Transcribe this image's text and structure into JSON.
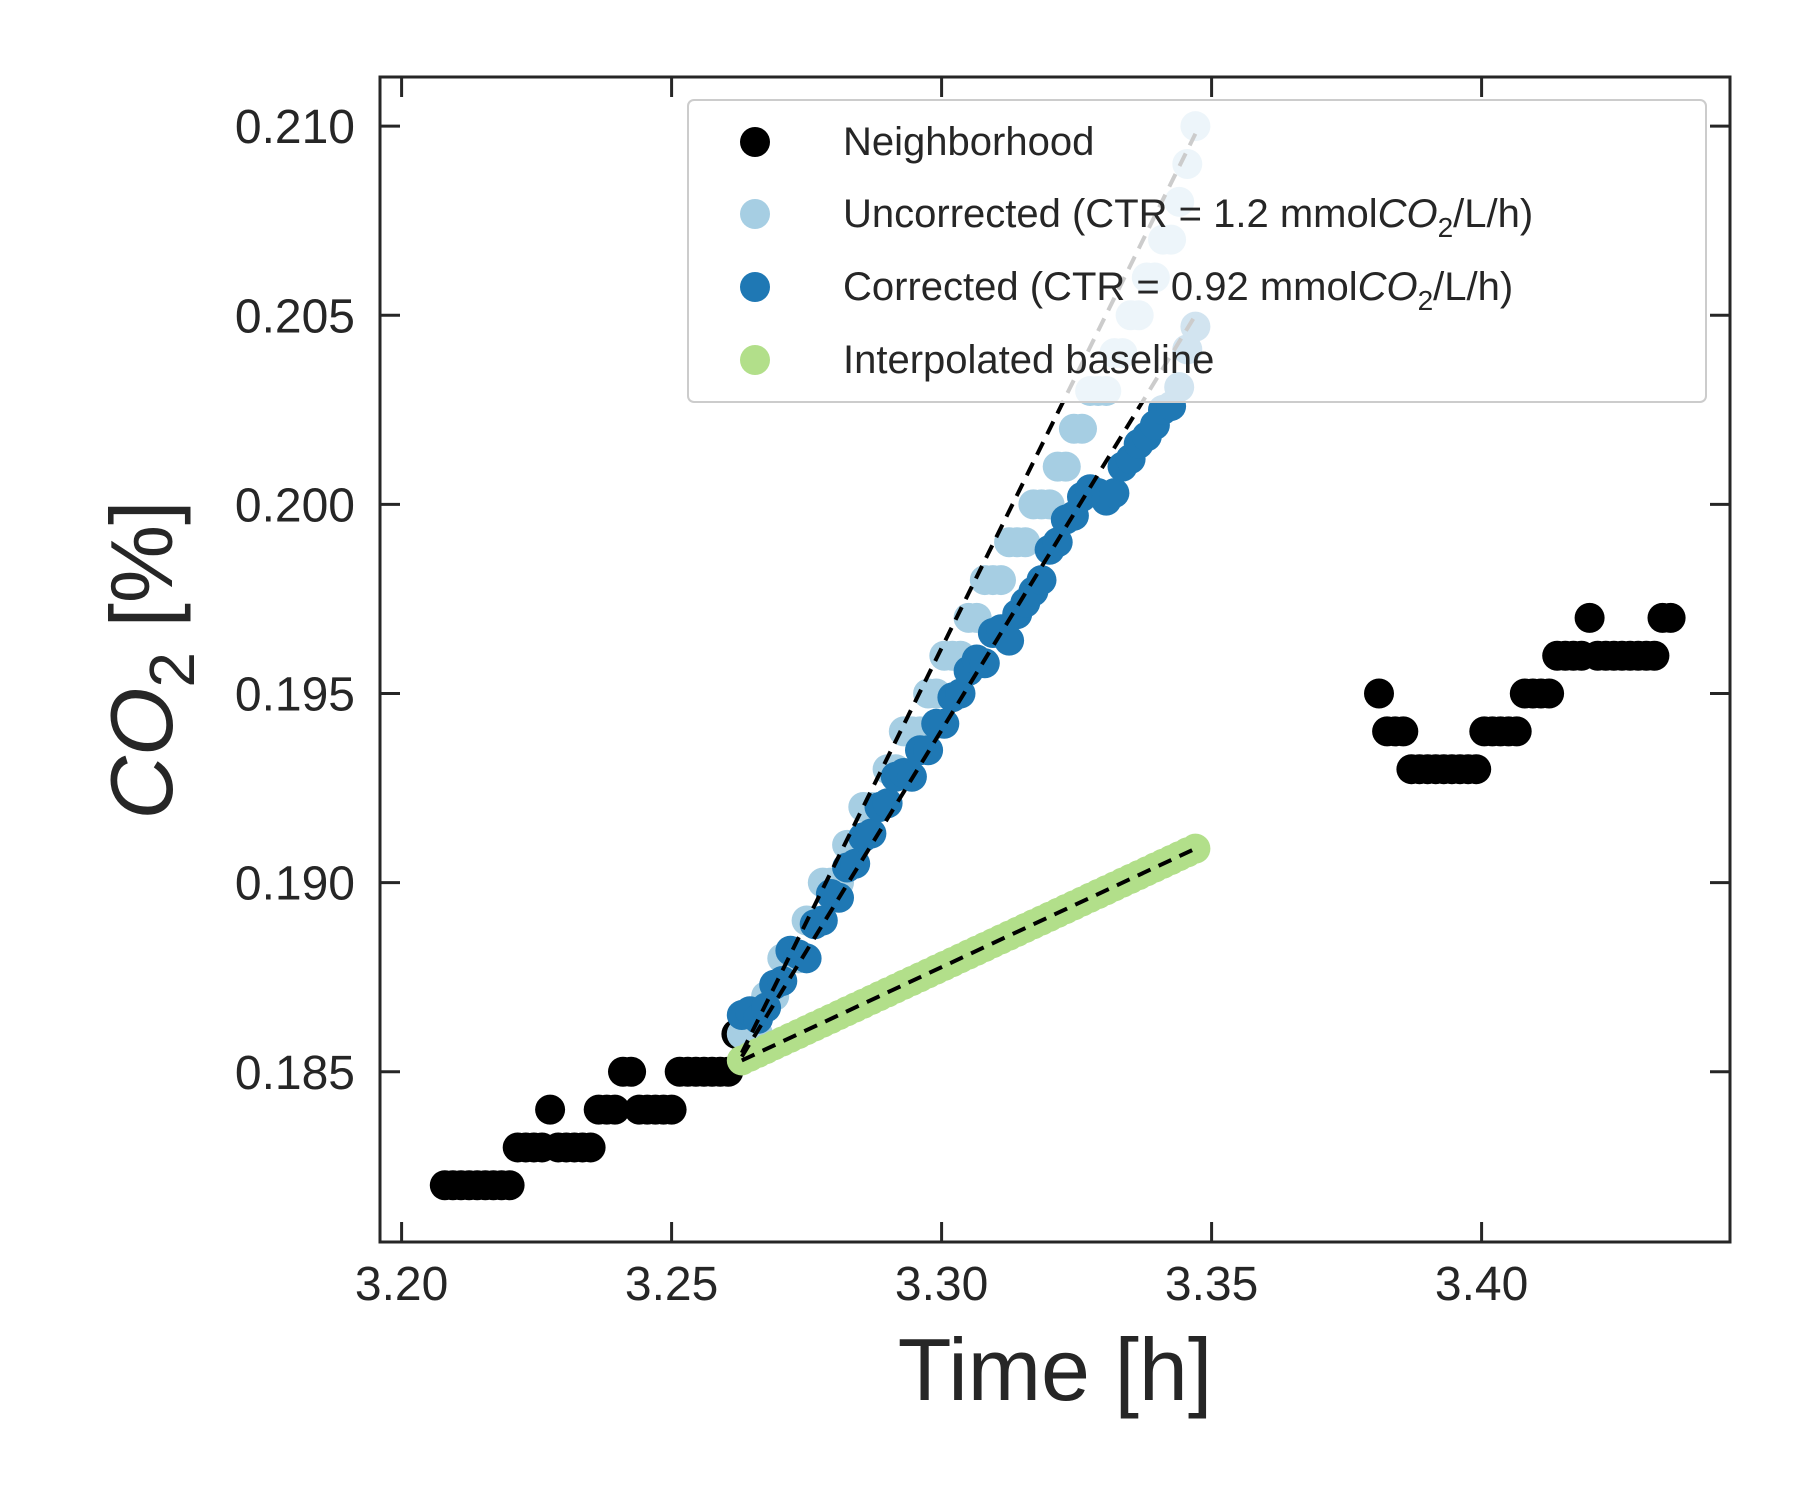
{
  "chart_data": {
    "type": "scatter",
    "xlabel": "Time [h]",
    "ylabel": "CO2 [%]",
    "xlim": [
      3.196,
      3.446
    ],
    "ylim": [
      0.1805,
      0.2113
    ],
    "xticks": [
      3.2,
      3.25,
      3.3,
      3.35,
      3.4
    ],
    "xtick_labels": [
      "3.20",
      "3.25",
      "3.30",
      "3.35",
      "3.40"
    ],
    "yticks": [
      0.185,
      0.19,
      0.195,
      0.2,
      0.205,
      0.21
    ],
    "ytick_labels": [
      "0.185",
      "0.190",
      "0.195",
      "0.200",
      "0.205",
      "0.210"
    ],
    "grid": false,
    "legend_position": "top-right",
    "legend": [
      {
        "label": "Neighborhood",
        "color": "#000000"
      },
      {
        "label": "Uncorrected (CTR = 1.2 mmolCO2/L/h)",
        "color": "#a6cee3"
      },
      {
        "label": "Corrected (CTR = 0.92 mmolCO2/L/h)",
        "color": "#1f78b4"
      },
      {
        "label": "Interpolated baseline",
        "color": "#b2df8a"
      }
    ],
    "series": [
      {
        "name": "Neighborhood",
        "color": "#000000",
        "x": [
          3.208,
          3.2095,
          3.211,
          3.2125,
          3.214,
          3.2155,
          3.217,
          3.2185,
          3.22,
          3.2215,
          3.223,
          3.2245,
          3.226,
          3.2275,
          3.229,
          3.2305,
          3.232,
          3.2335,
          3.235,
          3.2365,
          3.238,
          3.2395,
          3.241,
          3.2425,
          3.244,
          3.2455,
          3.247,
          3.2485,
          3.25,
          3.2515,
          3.253,
          3.2545,
          3.256,
          3.2575,
          3.259,
          3.2605,
          3.262,
          3.381,
          3.3825,
          3.384,
          3.3855,
          3.387,
          3.3885,
          3.39,
          3.3915,
          3.393,
          3.3945,
          3.396,
          3.3975,
          3.399,
          3.4005,
          3.402,
          3.4035,
          3.405,
          3.4065,
          3.408,
          3.4095,
          3.411,
          3.4125,
          3.414,
          3.4155,
          3.417,
          3.4185,
          3.42,
          3.4215,
          3.423,
          3.4245,
          3.426,
          3.4275,
          3.429,
          3.4305,
          3.432,
          3.4335,
          3.435
        ],
        "y": [
          0.182,
          0.182,
          0.182,
          0.182,
          0.182,
          0.182,
          0.182,
          0.182,
          0.182,
          0.183,
          0.183,
          0.183,
          0.183,
          0.184,
          0.183,
          0.183,
          0.183,
          0.183,
          0.183,
          0.184,
          0.184,
          0.184,
          0.185,
          0.185,
          0.184,
          0.184,
          0.184,
          0.184,
          0.184,
          0.185,
          0.185,
          0.185,
          0.185,
          0.185,
          0.185,
          0.185,
          0.186,
          0.195,
          0.194,
          0.194,
          0.194,
          0.193,
          0.193,
          0.193,
          0.193,
          0.193,
          0.193,
          0.193,
          0.193,
          0.193,
          0.194,
          0.194,
          0.194,
          0.194,
          0.194,
          0.195,
          0.195,
          0.195,
          0.195,
          0.196,
          0.196,
          0.196,
          0.196,
          0.197,
          0.196,
          0.196,
          0.196,
          0.196,
          0.196,
          0.196,
          0.196,
          0.196,
          0.197,
          0.197
        ]
      },
      {
        "name": "Uncorrected (CTR = 1.2 mmolCO2/L/h)",
        "color": "#a6cee3",
        "x": [
          3.263,
          3.2645,
          3.266,
          3.2675,
          3.269,
          3.2705,
          3.272,
          3.2735,
          3.275,
          3.2765,
          3.278,
          3.2795,
          3.281,
          3.2825,
          3.284,
          3.2855,
          3.287,
          3.2885,
          3.29,
          3.2915,
          3.293,
          3.2945,
          3.296,
          3.2975,
          3.299,
          3.3005,
          3.302,
          3.3035,
          3.305,
          3.3065,
          3.308,
          3.3095,
          3.311,
          3.3125,
          3.314,
          3.3155,
          3.317,
          3.3185,
          3.32,
          3.3215,
          3.323,
          3.3245,
          3.326,
          3.3275,
          3.329,
          3.3305,
          3.332,
          3.3335,
          3.335,
          3.3365,
          3.338,
          3.3395,
          3.341,
          3.3425,
          3.344,
          3.3455,
          3.347
        ],
        "y": [
          0.186,
          0.186,
          0.186,
          0.187,
          0.187,
          0.188,
          0.188,
          0.188,
          0.189,
          0.189,
          0.19,
          0.19,
          0.19,
          0.191,
          0.191,
          0.192,
          0.192,
          0.192,
          0.193,
          0.193,
          0.194,
          0.194,
          0.194,
          0.195,
          0.195,
          0.196,
          0.196,
          0.196,
          0.197,
          0.197,
          0.198,
          0.198,
          0.198,
          0.199,
          0.199,
          0.199,
          0.2,
          0.2,
          0.2,
          0.201,
          0.201,
          0.202,
          0.202,
          0.203,
          0.203,
          0.203,
          0.204,
          0.204,
          0.205,
          0.205,
          0.206,
          0.206,
          0.207,
          0.207,
          0.208,
          0.209,
          0.21
        ]
      },
      {
        "name": "Corrected (CTR = 0.92 mmolCO2/L/h)",
        "color": "#1f78b4",
        "x": [
          3.263,
          3.2645,
          3.266,
          3.2675,
          3.269,
          3.2705,
          3.272,
          3.2735,
          3.275,
          3.2765,
          3.278,
          3.2795,
          3.281,
          3.2825,
          3.284,
          3.2855,
          3.287,
          3.2885,
          3.29,
          3.2915,
          3.293,
          3.2945,
          3.296,
          3.2975,
          3.299,
          3.3005,
          3.302,
          3.3035,
          3.305,
          3.3065,
          3.308,
          3.3095,
          3.311,
          3.3125,
          3.314,
          3.3155,
          3.317,
          3.3185,
          3.32,
          3.3215,
          3.323,
          3.3245,
          3.326,
          3.3275,
          3.329,
          3.3305,
          3.332,
          3.3335,
          3.335,
          3.3365,
          3.338,
          3.3395,
          3.341,
          3.3425,
          3.344,
          3.3455,
          3.347
        ],
        "y": [
          0.1865,
          0.1866,
          0.1864,
          0.1867,
          0.1873,
          0.1874,
          0.1882,
          0.1881,
          0.188,
          0.1889,
          0.189,
          0.1897,
          0.1896,
          0.1904,
          0.1905,
          0.1912,
          0.1913,
          0.192,
          0.1921,
          0.1928,
          0.1929,
          0.1928,
          0.1935,
          0.1935,
          0.1942,
          0.1942,
          0.1949,
          0.195,
          0.1956,
          0.1959,
          0.1958,
          0.1966,
          0.1967,
          0.1964,
          0.1971,
          0.1974,
          0.1977,
          0.198,
          0.1988,
          0.199,
          0.1996,
          0.1997,
          0.2002,
          0.2004,
          0.2003,
          0.2001,
          0.2003,
          0.201,
          0.2012,
          0.2016,
          0.2018,
          0.2021,
          0.2025,
          0.2026,
          0.2031,
          0.2041,
          0.2047
        ]
      },
      {
        "name": "Interpolated baseline",
        "color": "#b2df8a",
        "x": [
          3.263,
          3.2645,
          3.266,
          3.2675,
          3.269,
          3.2705,
          3.272,
          3.2735,
          3.275,
          3.2765,
          3.278,
          3.2795,
          3.281,
          3.2825,
          3.284,
          3.2855,
          3.287,
          3.2885,
          3.29,
          3.2915,
          3.293,
          3.2945,
          3.296,
          3.2975,
          3.299,
          3.3005,
          3.302,
          3.3035,
          3.305,
          3.3065,
          3.308,
          3.3095,
          3.311,
          3.3125,
          3.314,
          3.3155,
          3.317,
          3.3185,
          3.32,
          3.3215,
          3.323,
          3.3245,
          3.326,
          3.3275,
          3.329,
          3.3305,
          3.332,
          3.3335,
          3.335,
          3.3365,
          3.338,
          3.3395,
          3.341,
          3.3425,
          3.344,
          3.3455,
          3.347
        ],
        "y": [
          0.1853,
          0.1854,
          0.1855,
          0.1856,
          0.1857,
          0.1858,
          0.1859,
          0.186,
          0.1861,
          0.1862,
          0.1863,
          0.1864,
          0.1865,
          0.1866,
          0.1867,
          0.1868,
          0.1869,
          0.187,
          0.1871,
          0.1872,
          0.1873,
          0.1874,
          0.1875,
          0.1876,
          0.1877,
          0.1878,
          0.1879,
          0.188,
          0.1881,
          0.1882,
          0.1883,
          0.1884,
          0.1885,
          0.1886,
          0.1887,
          0.1888,
          0.1889,
          0.189,
          0.1891,
          0.1892,
          0.1893,
          0.1894,
          0.1895,
          0.1896,
          0.1897,
          0.1898,
          0.1899,
          0.19,
          0.1901,
          0.1902,
          0.1903,
          0.1904,
          0.1905,
          0.1906,
          0.1907,
          0.1908,
          0.1909
        ]
      }
    ],
    "fit_lines": [
      {
        "x": [
          3.263,
          3.347
        ],
        "y": [
          0.1855,
          0.2098
        ],
        "color": "#000000",
        "style": "dashed"
      },
      {
        "x": [
          3.263,
          3.347
        ],
        "y": [
          0.1854,
          0.205
        ],
        "color": "#000000",
        "style": "dashed"
      },
      {
        "x": [
          3.263,
          3.347
        ],
        "y": [
          0.1853,
          0.1909
        ],
        "color": "#000000",
        "style": "dashed"
      }
    ]
  }
}
